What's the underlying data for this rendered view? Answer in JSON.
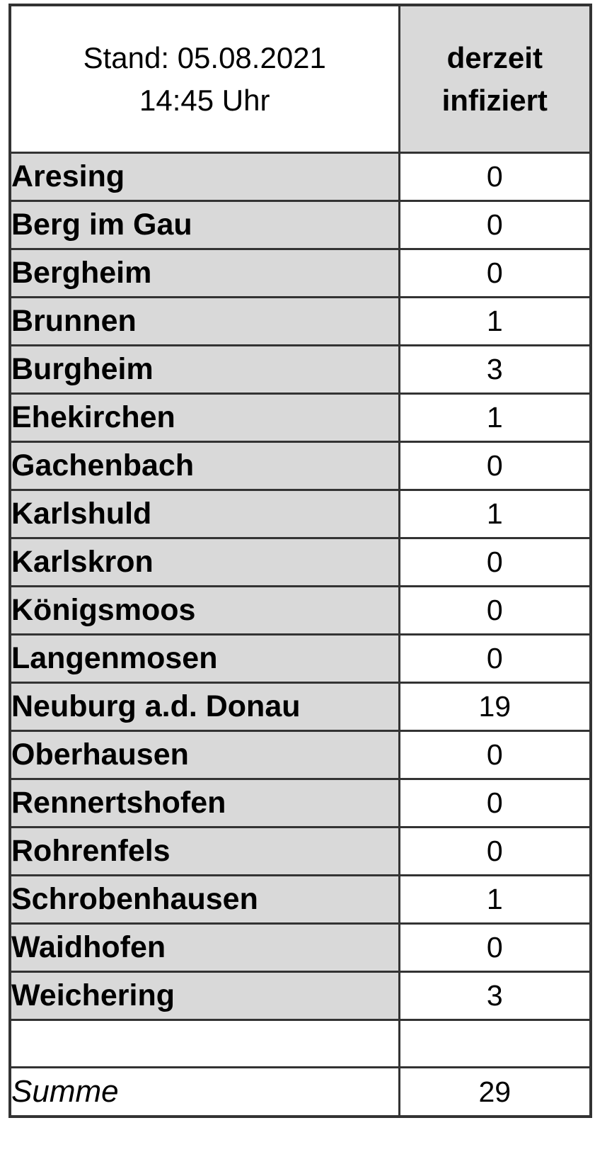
{
  "chart_data": {
    "type": "table",
    "title": "Stand: 05.08.2021 14:45 Uhr",
    "header": {
      "date_line1": "Stand: 05.08.2021",
      "date_line2": "14:45 Uhr",
      "value_col_line1": "derzeit",
      "value_col_line2": "infiziert"
    },
    "rows": [
      {
        "name": "Aresing",
        "value": 0
      },
      {
        "name": "Berg im Gau",
        "value": 0
      },
      {
        "name": "Bergheim",
        "value": 0
      },
      {
        "name": "Brunnen",
        "value": 1
      },
      {
        "name": "Burgheim",
        "value": 3
      },
      {
        "name": "Ehekirchen",
        "value": 1
      },
      {
        "name": "Gachenbach",
        "value": 0
      },
      {
        "name": "Karlshuld",
        "value": 1
      },
      {
        "name": "Karlskron",
        "value": 0
      },
      {
        "name": "Königsmoos",
        "value": 0
      },
      {
        "name": "Langenmosen",
        "value": 0
      },
      {
        "name": "Neuburg a.d. Donau",
        "value": 19
      },
      {
        "name": "Oberhausen",
        "value": 0
      },
      {
        "name": "Rennertshofen",
        "value": 0
      },
      {
        "name": "Rohrenfels",
        "value": 0
      },
      {
        "name": "Schrobenhausen",
        "value": 1
      },
      {
        "name": "Waidhofen",
        "value": 0
      },
      {
        "name": "Weichering",
        "value": 3
      }
    ],
    "summary": {
      "label": "Summe",
      "value": 29
    }
  },
  "colors": {
    "label_cell_bg": "#d9d9d9",
    "value_cell_bg": "#ffffff",
    "border": "#333333",
    "text": "#000000"
  }
}
